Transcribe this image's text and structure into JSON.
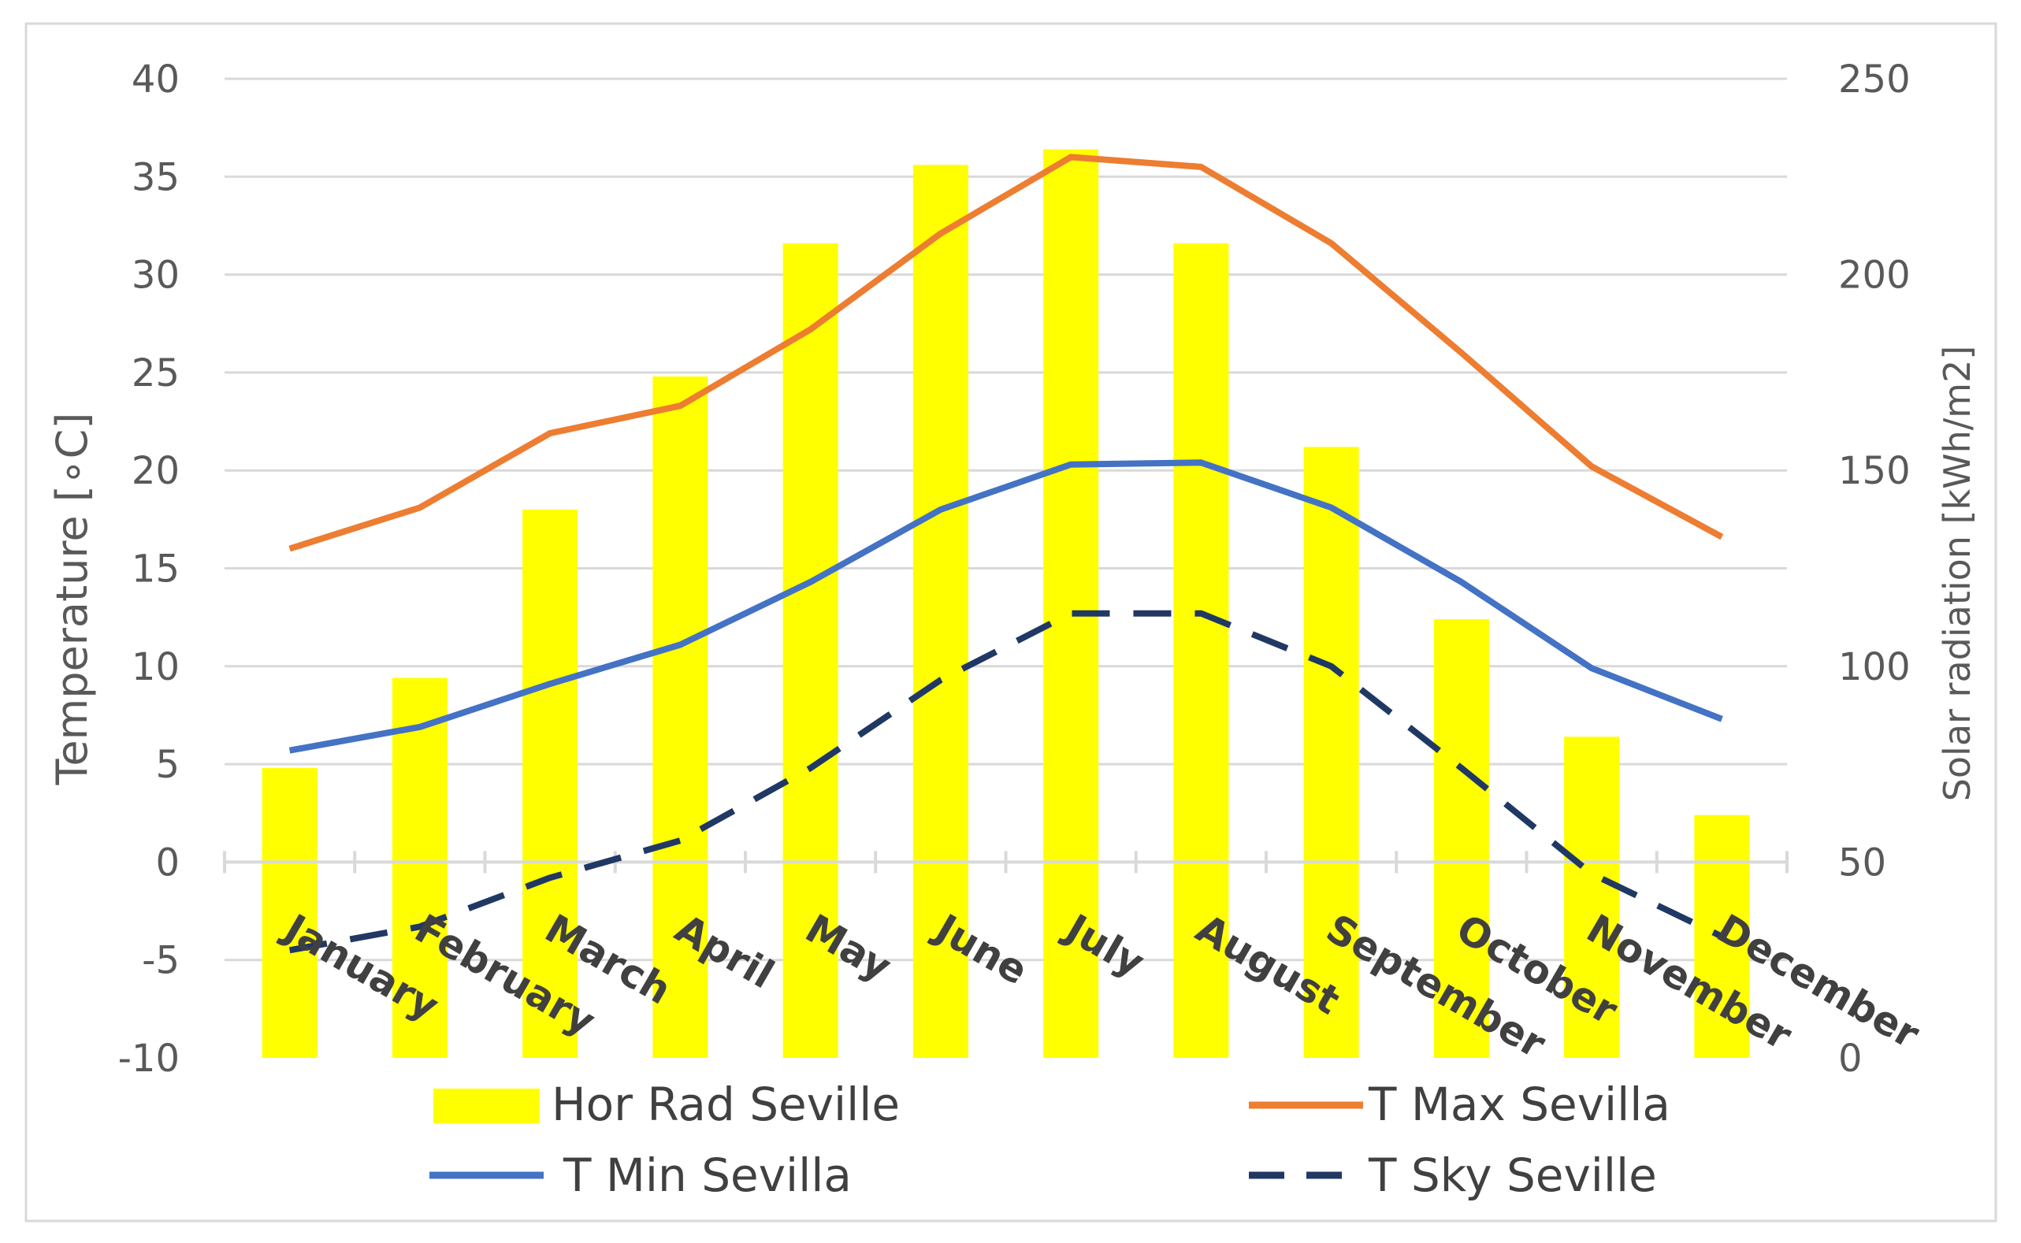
{
  "chart_data": {
    "type": "bar+line",
    "categories": [
      "January",
      "February",
      "March",
      "April",
      "May",
      "June",
      "July",
      "August",
      "September",
      "October",
      "November",
      "December"
    ],
    "bar_series": {
      "name": "Hor Rad Seville",
      "axis": "right",
      "color": "#FFFF00",
      "values": [
        74,
        97,
        140,
        174,
        208,
        228,
        232,
        208,
        156,
        112,
        82,
        62
      ]
    },
    "line_series": [
      {
        "name": "T Max Sevilla",
        "axis": "left",
        "color": "#ED7D31",
        "dash": "solid",
        "values": [
          16.0,
          18.1,
          21.9,
          23.3,
          27.2,
          32.1,
          36.0,
          35.5,
          31.6,
          26.0,
          20.2,
          16.6
        ]
      },
      {
        "name": "T Min Sevilla",
        "axis": "left",
        "color": "#4472C4",
        "dash": "solid",
        "values": [
          5.7,
          6.9,
          9.1,
          11.1,
          14.3,
          18.0,
          20.3,
          20.4,
          18.1,
          14.3,
          9.9,
          7.3
        ]
      },
      {
        "name": "T Sky Seville",
        "axis": "left",
        "color": "#203864",
        "dash": "dashed",
        "values": [
          -4.5,
          -3.3,
          -0.8,
          1.1,
          4.8,
          9.3,
          12.7,
          12.7,
          10.0,
          4.8,
          -0.6,
          -3.8
        ]
      }
    ],
    "left_axis": {
      "label": "Temperature [∘C]",
      "min": -10,
      "max": 40,
      "step": 5,
      "ticks": [
        "-10",
        "-5",
        "0",
        "5",
        "10",
        "15",
        "20",
        "25",
        "30",
        "35",
        "40"
      ]
    },
    "right_axis": {
      "label": "Solar radiation [kWh/m2]",
      "min": 0,
      "max": 250,
      "step": 50,
      "ticks": [
        "0",
        "50",
        "100",
        "150",
        "200",
        "250"
      ]
    },
    "legend": {
      "position": "bottom",
      "entries": [
        "Hor Rad Seville",
        "T Max Sevilla",
        "T Min Sevilla",
        "T Sky Seville"
      ]
    },
    "grid": true
  }
}
